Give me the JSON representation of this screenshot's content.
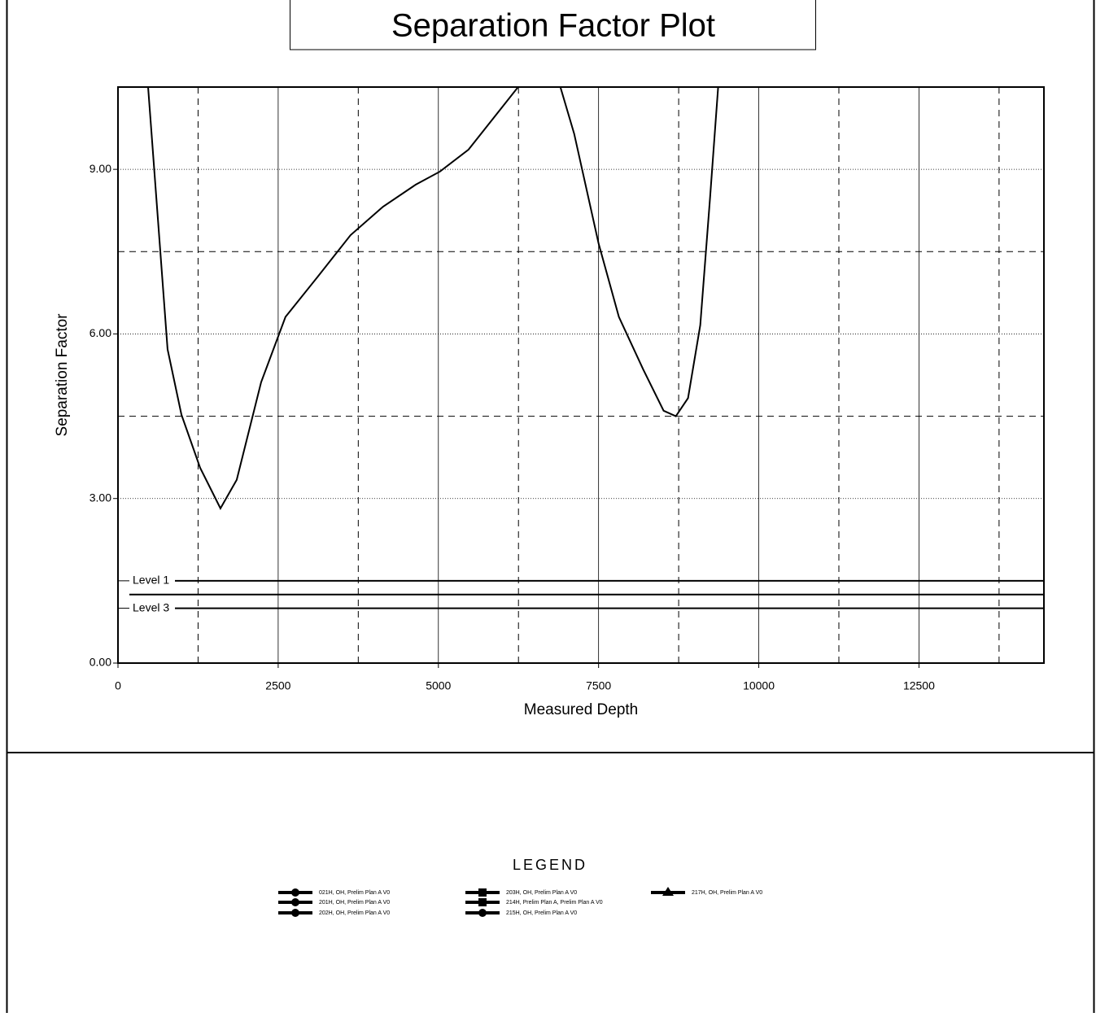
{
  "chart_data": {
    "type": "line",
    "title": "Separation Factor Plot",
    "xlabel": "Measured Depth",
    "ylabel": "Separation Factor",
    "xlim": [
      0,
      14450
    ],
    "ylim": [
      0,
      10.5
    ],
    "xticks": [
      0,
      2500,
      5000,
      7500,
      10000,
      12500
    ],
    "yticks": [
      {
        "value": 0,
        "label": "0.00"
      },
      {
        "value": 3,
        "label": "3.00"
      },
      {
        "value": 6,
        "label": "6.00"
      },
      {
        "value": 9,
        "label": "9.00"
      }
    ],
    "xminor": [
      1250,
      3750,
      6250,
      8750,
      11250,
      13750
    ],
    "yminor": [
      4.5,
      7.5
    ],
    "grid": true,
    "levels": [
      {
        "label": "Level 1",
        "value": 1.5
      },
      {
        "label": null,
        "value": 1.25
      },
      {
        "label": "Level 3",
        "value": 1.0
      }
    ],
    "series": [
      {
        "color": "#000000",
        "x": [
          470,
          774,
          990,
          1282,
          1599,
          1853,
          2234,
          2614,
          3122,
          3629,
          4137,
          4645,
          5025,
          5470,
          6244
        ],
        "values": [
          10.5,
          5.72,
          4.53,
          3.56,
          2.82,
          3.34,
          5.12,
          6.31,
          7.05,
          7.8,
          8.32,
          8.72,
          8.96,
          9.36,
          10.5
        ]
      },
      {
        "color": "#000000",
        "x": [
          6904,
          7119,
          7500,
          7817,
          8198,
          8515,
          8706,
          8896,
          9087,
          9239,
          9366
        ],
        "values": [
          10.5,
          9.65,
          7.65,
          6.31,
          5.35,
          4.6,
          4.5,
          4.83,
          6.16,
          8.47,
          10.5
        ]
      }
    ],
    "legend_title": "LEGEND",
    "legend": [
      {
        "name": "021H, OH, Prelim Plan A V0",
        "symbol": "circle"
      },
      {
        "name": "201H, OH, Prelim Plan A V0",
        "symbol": "circle"
      },
      {
        "name": "202H, OH, Prelim Plan A V0",
        "symbol": "circle"
      },
      {
        "name": "203H, OH, Prelim Plan A V0",
        "symbol": "square"
      },
      {
        "name": "214H, Prelim Plan A, Prelim Plan A V0",
        "symbol": "square"
      },
      {
        "name": "215H, OH, Prelim Plan A V0",
        "symbol": "circle"
      },
      {
        "name": "217H, OH, Prelim Plan A V0",
        "symbol": "triangle"
      }
    ]
  }
}
